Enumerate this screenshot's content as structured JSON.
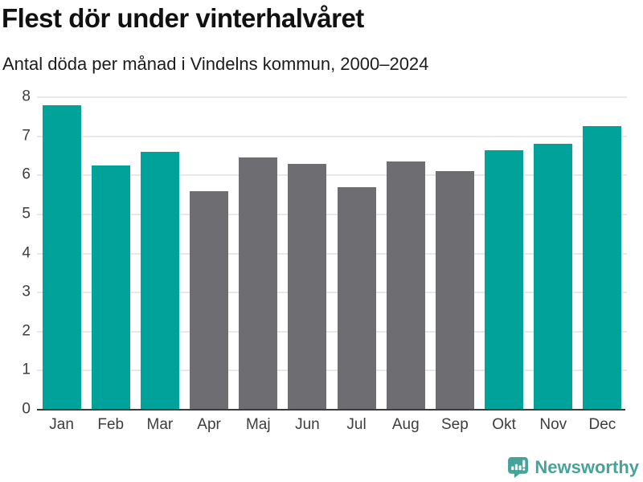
{
  "title": "Flest dör under vinterhalvåret",
  "subtitle": "Antal döda per månad i Vindelns kommun, 2000–2024",
  "footer": {
    "brand": "Newsworthy"
  },
  "colors": {
    "winter_bar": "#00a29a",
    "summer_bar": "#6e6e72",
    "gridline": "#e8e8e8",
    "axis_line": "#3c3c3c",
    "tick_label": "#3d3d3d",
    "title_text": "#111111",
    "subtitle_text": "#1c1c1c",
    "logo": "#45a39c"
  },
  "chart_data": {
    "type": "bar",
    "title": "Flest dör under vinterhalvåret",
    "subtitle": "Antal döda per månad i Vindelns kommun, 2000–2024",
    "categories": [
      "Jan",
      "Feb",
      "Mar",
      "Apr",
      "Maj",
      "Jun",
      "Jul",
      "Aug",
      "Sep",
      "Okt",
      "Nov",
      "Dec"
    ],
    "values": [
      7.8,
      6.25,
      6.6,
      5.6,
      6.45,
      6.3,
      5.7,
      6.35,
      6.1,
      6.65,
      6.8,
      7.25
    ],
    "bar_groups": [
      "winter",
      "winter",
      "winter",
      "summer",
      "summer",
      "summer",
      "summer",
      "summer",
      "summer",
      "winter",
      "winter",
      "winter"
    ],
    "palette": {
      "winter": "#00a29a",
      "summer": "#6e6e72"
    },
    "xlabel": "",
    "ylabel": "",
    "ylim": [
      0,
      8
    ],
    "yticks": [
      0,
      1,
      2,
      3,
      4,
      5,
      6,
      7,
      8
    ],
    "grid": true,
    "legend_position": "none"
  }
}
